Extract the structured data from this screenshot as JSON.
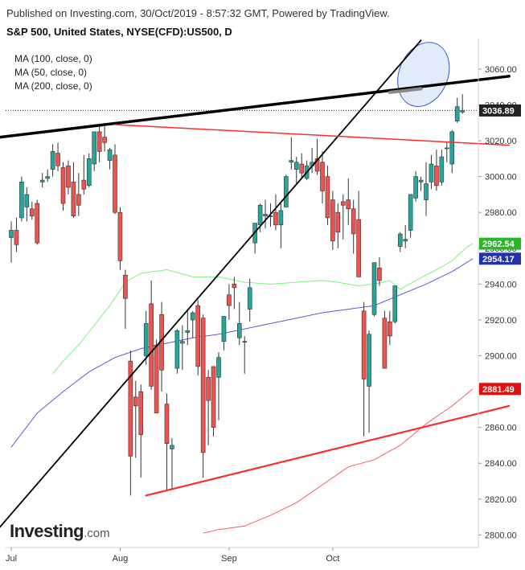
{
  "header": {
    "published": "Published on Investing.com, 30/Oct/2019 - 8:57:32 GMT, Powered by TradingView.",
    "title": "S&P 500, United States, NYSE(CFD):US500, D"
  },
  "legend": [
    "MA (100, close, 0)",
    "MA (50, close, 0)",
    "MA (200, close, 0)"
  ],
  "logo": {
    "brand": "Investing",
    "suffix": ".com"
  },
  "colors": {
    "up": "#26a69a",
    "down": "#ef5350",
    "ma50": "#7ef27e",
    "ma100": "#5a5ad8",
    "ma200": "#f06060",
    "trendline": "#000000",
    "resistance": "#ff2a2a",
    "highlight_fill": "#dde8f8",
    "highlight_stroke": "#3355cc"
  },
  "chart_data": {
    "type": "candlestick",
    "y_axis": {
      "range": [
        2793,
        3077
      ],
      "ticks": [
        "3060.00",
        "3040.00",
        "3020.00",
        "3000.00",
        "2980.00",
        "2960.00",
        "2940.00",
        "2920.00",
        "2900.00",
        "2880.00",
        "2860.00",
        "2840.00",
        "2820.00",
        "2800.00"
      ]
    },
    "x_axis": {
      "labels": [
        "Jul",
        "Aug",
        "Sep",
        "Oct"
      ],
      "label_index": [
        0,
        21,
        42,
        62
      ]
    },
    "price_badges": [
      {
        "label": "3036.89",
        "value": 3036.89,
        "color": "#222222"
      },
      {
        "label": "2962.54",
        "value": 2962.54,
        "color": "#2ab52a"
      },
      {
        "label": "2954.17",
        "value": 2954.17,
        "color": "#2233aa"
      },
      {
        "label": "2881.49",
        "value": 2881.49,
        "color": "#dd1111"
      }
    ],
    "last_price_line": 3036.89,
    "candles": [
      {
        "o": 2966,
        "h": 2975,
        "l": 2952,
        "c": 2970
      },
      {
        "o": 2970,
        "h": 2977,
        "l": 2958,
        "c": 2962
      },
      {
        "o": 2977,
        "h": 3000,
        "l": 2975,
        "c": 2997
      },
      {
        "o": 2983,
        "h": 2994,
        "l": 2975,
        "c": 2990
      },
      {
        "o": 2982,
        "h": 2986,
        "l": 2976,
        "c": 2978
      },
      {
        "o": 2985,
        "h": 2987,
        "l": 2962,
        "c": 2963
      },
      {
        "o": 2997,
        "h": 3002,
        "l": 2994,
        "c": 2998
      },
      {
        "o": 2999,
        "h": 3004,
        "l": 2997,
        "c": 3000
      },
      {
        "o": 3004,
        "h": 3018,
        "l": 3000,
        "c": 3014
      },
      {
        "o": 3013,
        "h": 3019,
        "l": 3003,
        "c": 3006
      },
      {
        "o": 3005,
        "h": 3008,
        "l": 2981,
        "c": 2985
      },
      {
        "o": 3006,
        "h": 3009,
        "l": 2990,
        "c": 2994
      },
      {
        "o": 2997,
        "h": 3008,
        "l": 2977,
        "c": 2978
      },
      {
        "o": 2990,
        "h": 3002,
        "l": 2978,
        "c": 2984
      },
      {
        "o": 2998,
        "h": 3012,
        "l": 2990,
        "c": 2993
      },
      {
        "o": 2995,
        "h": 3013,
        "l": 2994,
        "c": 3010
      },
      {
        "o": 3007,
        "h": 3025,
        "l": 3003,
        "c": 3025
      },
      {
        "o": 3025,
        "h": 3028,
        "l": 3008,
        "c": 3014
      },
      {
        "o": 3022,
        "h": 3028,
        "l": 3014,
        "c": 3019
      },
      {
        "o": 3009,
        "h": 3016,
        "l": 3004,
        "c": 3015
      },
      {
        "o": 3012,
        "h": 3018,
        "l": 2979,
        "c": 2980
      },
      {
        "o": 2980,
        "h": 2983,
        "l": 2948,
        "c": 2953
      },
      {
        "o": 2945,
        "h": 2948,
        "l": 2915,
        "c": 2932
      },
      {
        "o": 2897,
        "h": 2903,
        "l": 2822,
        "c": 2844
      },
      {
        "o": 2877,
        "h": 2886,
        "l": 2843,
        "c": 2872
      },
      {
        "o": 2880,
        "h": 2884,
        "l": 2832,
        "c": 2856
      },
      {
        "o": 2900,
        "h": 2925,
        "l": 2895,
        "c": 2918
      },
      {
        "o": 2929,
        "h": 2942,
        "l": 2881,
        "c": 2883
      },
      {
        "o": 2906,
        "h": 2909,
        "l": 2868,
        "c": 2868
      },
      {
        "o": 2923,
        "h": 2930,
        "l": 2880,
        "c": 2892
      },
      {
        "o": 2873,
        "h": 2879,
        "l": 2825,
        "c": 2851
      },
      {
        "o": 2848,
        "h": 2854,
        "l": 2825,
        "c": 2850
      },
      {
        "o": 2893,
        "h": 2915,
        "l": 2890,
        "c": 2914
      },
      {
        "o": 2907,
        "h": 2917,
        "l": 2892,
        "c": 2908
      },
      {
        "o": 2913,
        "h": 2926,
        "l": 2906,
        "c": 2914
      },
      {
        "o": 2920,
        "h": 2925,
        "l": 2910,
        "c": 2924
      },
      {
        "o": 2928,
        "h": 2931,
        "l": 2889,
        "c": 2894
      },
      {
        "o": 2921,
        "h": 2923,
        "l": 2832,
        "c": 2846
      },
      {
        "o": 2888,
        "h": 2892,
        "l": 2850,
        "c": 2875
      },
      {
        "o": 2894,
        "h": 2894,
        "l": 2855,
        "c": 2860
      },
      {
        "o": 2888,
        "h": 2902,
        "l": 2864,
        "c": 2899
      },
      {
        "o": 2908,
        "h": 2922,
        "l": 2903,
        "c": 2922
      },
      {
        "o": 2934,
        "h": 2940,
        "l": 2920,
        "c": 2928
      },
      {
        "o": 2940,
        "h": 2944,
        "l": 2926,
        "c": 2938
      },
      {
        "o": 2910,
        "h": 2930,
        "l": 2906,
        "c": 2918
      },
      {
        "o": 2908,
        "h": 2911,
        "l": 2890,
        "c": 2908
      },
      {
        "o": 2926,
        "h": 2943,
        "l": 2919,
        "c": 2938
      },
      {
        "o": 2963,
        "h": 2973,
        "l": 2957,
        "c": 2974
      },
      {
        "o": 2973,
        "h": 2985,
        "l": 2969,
        "c": 2984
      },
      {
        "o": 2978,
        "h": 2987,
        "l": 2971,
        "c": 2979
      },
      {
        "o": 2978,
        "h": 2985,
        "l": 2972,
        "c": 2978
      },
      {
        "o": 2980,
        "h": 2990,
        "l": 2970,
        "c": 2973
      },
      {
        "o": 2973,
        "h": 2985,
        "l": 2960,
        "c": 2981
      },
      {
        "o": 2983,
        "h": 3001,
        "l": 2983,
        "c": 3000
      },
      {
        "o": 3008,
        "h": 3022,
        "l": 3004,
        "c": 3009
      },
      {
        "o": 3004,
        "h": 3011,
        "l": 2996,
        "c": 3008
      },
      {
        "o": 3007,
        "h": 3013,
        "l": 2999,
        "c": 3002
      },
      {
        "o": 2999,
        "h": 3009,
        "l": 2998,
        "c": 3006
      },
      {
        "o": 3006,
        "h": 3016,
        "l": 3002,
        "c": 3008
      },
      {
        "o": 3010,
        "h": 3021,
        "l": 3001,
        "c": 3003
      },
      {
        "o": 3008,
        "h": 3014,
        "l": 2985,
        "c": 2992
      },
      {
        "o": 3000,
        "h": 3006,
        "l": 2973,
        "c": 2977
      },
      {
        "o": 2987,
        "h": 2992,
        "l": 2959,
        "c": 2964
      },
      {
        "o": 2980,
        "h": 2985,
        "l": 2960,
        "c": 2969
      },
      {
        "o": 2986,
        "h": 2990,
        "l": 2965,
        "c": 2984
      },
      {
        "o": 2987,
        "h": 2999,
        "l": 2973,
        "c": 2982
      },
      {
        "o": 2982,
        "h": 2987,
        "l": 2957,
        "c": 2968
      },
      {
        "o": 2976,
        "h": 2992,
        "l": 2945,
        "c": 2944
      },
      {
        "o": 2925,
        "h": 2930,
        "l": 2855,
        "c": 2887
      },
      {
        "o": 2883,
        "h": 2914,
        "l": 2857,
        "c": 2912
      },
      {
        "o": 2923,
        "h": 2950,
        "l": 2922,
        "c": 2952
      },
      {
        "o": 2949,
        "h": 2955,
        "l": 2939,
        "c": 2942
      },
      {
        "o": 2921,
        "h": 2925,
        "l": 2893,
        "c": 2893
      },
      {
        "o": 2919,
        "h": 2925,
        "l": 2906,
        "c": 2911
      },
      {
        "o": 2919,
        "h": 2939,
        "l": 2918,
        "c": 2939
      },
      {
        "o": 2961,
        "h": 2969,
        "l": 2958,
        "c": 2968
      },
      {
        "o": 2964,
        "h": 2973,
        "l": 2960,
        "c": 2965
      },
      {
        "o": 2970,
        "h": 2988,
        "l": 2966,
        "c": 2990
      },
      {
        "o": 2988,
        "h": 3003,
        "l": 2986,
        "c": 3000
      },
      {
        "o": 2997,
        "h": 3000,
        "l": 2992,
        "c": 2998
      },
      {
        "o": 2987,
        "h": 3008,
        "l": 2978,
        "c": 2996
      },
      {
        "o": 2997,
        "h": 3012,
        "l": 2993,
        "c": 3007
      },
      {
        "o": 3006,
        "h": 3015,
        "l": 2992,
        "c": 2995
      },
      {
        "o": 2997,
        "h": 3015,
        "l": 2995,
        "c": 3011
      },
      {
        "o": 3016,
        "h": 3019,
        "l": 3008,
        "c": 3016
      },
      {
        "o": 3007,
        "h": 3026,
        "l": 3002,
        "c": 3025
      },
      {
        "o": 3031,
        "h": 3044,
        "l": 3030,
        "c": 3039
      },
      {
        "o": 3036,
        "h": 3046,
        "l": 3035,
        "c": 3036.89
      }
    ],
    "ma50": [
      [
        8,
        2890
      ],
      [
        10,
        2897
      ],
      [
        13,
        2906
      ],
      [
        16,
        2917
      ],
      [
        19,
        2928
      ],
      [
        22,
        2941
      ],
      [
        25,
        2946
      ],
      [
        30,
        2948
      ],
      [
        35,
        2944
      ],
      [
        40,
        2944
      ],
      [
        45,
        2941
      ],
      [
        50,
        2940
      ],
      [
        55,
        2941
      ],
      [
        60,
        2942
      ],
      [
        63,
        2941
      ],
      [
        67,
        2939
      ],
      [
        70,
        2940
      ],
      [
        73,
        2942
      ],
      [
        75,
        2937
      ],
      [
        78,
        2942
      ],
      [
        82,
        2948
      ],
      [
        85,
        2953
      ],
      [
        88,
        2961
      ],
      [
        89,
        2962.54
      ]
    ],
    "ma100": [
      [
        0,
        2849
      ],
      [
        5,
        2868
      ],
      [
        10,
        2880
      ],
      [
        15,
        2891
      ],
      [
        20,
        2899
      ],
      [
        25,
        2904
      ],
      [
        30,
        2907
      ],
      [
        35,
        2910
      ],
      [
        40,
        2912
      ],
      [
        45,
        2915
      ],
      [
        50,
        2918
      ],
      [
        55,
        2921
      ],
      [
        60,
        2924
      ],
      [
        65,
        2926
      ],
      [
        70,
        2928
      ],
      [
        75,
        2934
      ],
      [
        80,
        2940
      ],
      [
        85,
        2947
      ],
      [
        89,
        2954.17
      ]
    ],
    "ma200": [
      [
        37,
        2801
      ],
      [
        40,
        2803
      ],
      [
        45,
        2805
      ],
      [
        50,
        2811
      ],
      [
        55,
        2818
      ],
      [
        60,
        2828
      ],
      [
        65,
        2838
      ],
      [
        70,
        2842
      ],
      [
        75,
        2850
      ],
      [
        80,
        2862
      ],
      [
        85,
        2872
      ],
      [
        89,
        2881.49
      ]
    ],
    "lines": [
      {
        "name": "upper-black-trendline",
        "color": "#000000",
        "width": 3.5,
        "p1": [
          -5,
          3021
        ],
        "p2": [
          96,
          3056
        ]
      },
      {
        "name": "diagonal-support-line",
        "color": "#000000",
        "width": 1.8,
        "p1": [
          -5,
          2795
        ],
        "p2": [
          79,
          3076
        ]
      },
      {
        "name": "red-resistance-line",
        "color": "#ff2a2a",
        "width": 1.5,
        "p1": [
          20,
          3029
        ],
        "p2": [
          96,
          3017.5
        ]
      },
      {
        "name": "red-support-line",
        "color": "#ff2a2a",
        "width": 2.2,
        "p1": [
          26,
          2822
        ],
        "p2": [
          96,
          2872
        ]
      },
      {
        "name": "gray-highlight-segment",
        "color": "#8a8a8a",
        "width": 4,
        "p1": [
          73,
          3047
        ],
        "p2": [
          79,
          3049
        ]
      }
    ],
    "ellipse": {
      "cx": 79.5,
      "cy": 3057,
      "rx": 4.7,
      "ry": 18.5,
      "rotate": 22
    }
  }
}
